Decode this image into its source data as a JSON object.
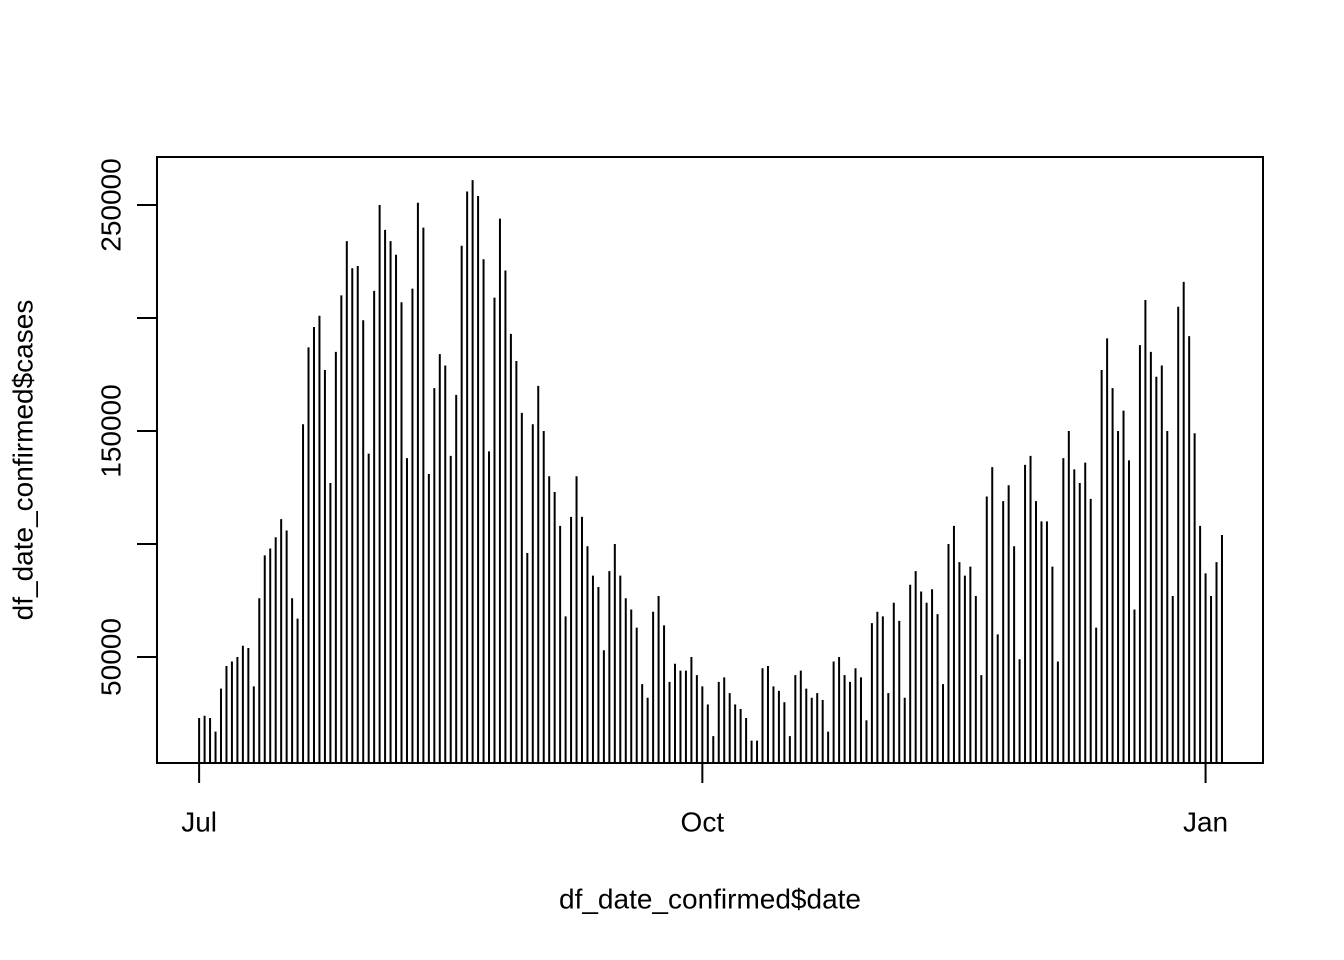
{
  "chart_data": {
    "type": "histogram-lines",
    "xlabel": "df_date_confirmed$date",
    "ylabel": "df_date_confirmed$cases",
    "x": [
      0,
      1,
      2,
      3,
      4,
      5,
      6,
      7,
      8,
      9,
      10,
      11,
      12,
      13,
      14,
      15,
      16,
      17,
      18,
      19,
      20,
      21,
      22,
      23,
      24,
      25,
      26,
      27,
      28,
      29,
      30,
      31,
      32,
      33,
      34,
      35,
      36,
      37,
      38,
      39,
      40,
      41,
      42,
      43,
      44,
      45,
      46,
      47,
      48,
      49,
      50,
      51,
      52,
      53,
      54,
      55,
      56,
      57,
      58,
      59,
      60,
      61,
      62,
      63,
      64,
      65,
      66,
      67,
      68,
      69,
      70,
      71,
      72,
      73,
      74,
      75,
      76,
      77,
      78,
      79,
      80,
      81,
      82,
      83,
      84,
      85,
      86,
      87,
      88,
      89,
      90,
      91,
      92,
      93,
      94,
      95,
      96,
      97,
      98,
      99,
      100,
      101,
      102,
      103,
      104,
      105,
      106,
      107,
      108,
      109,
      110,
      111,
      112,
      113,
      114,
      115,
      116,
      117,
      118,
      119,
      120,
      121,
      122,
      123,
      124,
      125,
      126,
      127,
      128,
      129,
      130,
      131,
      132,
      133,
      134,
      135,
      136,
      137,
      138,
      139,
      140,
      141,
      142,
      143,
      144,
      145,
      146,
      147,
      148,
      149,
      150,
      151,
      152,
      153,
      154,
      155,
      156,
      157,
      158,
      159,
      160,
      161,
      162,
      163,
      164,
      165,
      166,
      167,
      168,
      169,
      170,
      171,
      172,
      173,
      174,
      175,
      176,
      177,
      178,
      179,
      180,
      181,
      182,
      183,
      184,
      185,
      186,
      187
    ],
    "values": [
      23000,
      24000,
      23000,
      17000,
      36000,
      46000,
      48000,
      50000,
      55000,
      54000,
      37000,
      76000,
      95000,
      98000,
      103000,
      111000,
      106000,
      76000,
      67000,
      153000,
      187000,
      196000,
      201000,
      177000,
      127000,
      185000,
      210000,
      234000,
      222000,
      223000,
      199000,
      140000,
      212000,
      250000,
      239000,
      234000,
      228000,
      207000,
      138000,
      213000,
      251000,
      240000,
      131000,
      169000,
      184000,
      179000,
      139000,
      166000,
      232000,
      256000,
      261000,
      254000,
      226000,
      141000,
      209000,
      244000,
      221000,
      193000,
      181000,
      158000,
      96000,
      153000,
      170000,
      150000,
      130000,
      123000,
      108000,
      68000,
      112000,
      130000,
      112000,
      99000,
      86000,
      81000,
      53000,
      88000,
      100000,
      86000,
      76000,
      71000,
      63000,
      38000,
      32000,
      70000,
      77000,
      64000,
      39000,
      47000,
      44000,
      44000,
      50000,
      42000,
      37000,
      29000,
      15000,
      39000,
      41000,
      34000,
      29000,
      27000,
      23000,
      13000,
      13000,
      45000,
      46000,
      37000,
      35000,
      30000,
      15000,
      42000,
      44000,
      36000,
      32000,
      34000,
      31000,
      17000,
      48000,
      50000,
      42000,
      39000,
      45000,
      41000,
      22000,
      65000,
      70000,
      68000,
      34000,
      74000,
      66000,
      32000,
      82000,
      88000,
      79000,
      74000,
      80000,
      69000,
      38000,
      100000,
      108000,
      92000,
      86000,
      90000,
      77000,
      42000,
      121000,
      134000,
      60000,
      119000,
      126000,
      99000,
      49000,
      135000,
      139000,
      119000,
      110000,
      110000,
      90000,
      48000,
      138000,
      150000,
      133000,
      127000,
      136000,
      120000,
      63000,
      177000,
      191000,
      169000,
      150000,
      159000,
      137000,
      71000,
      188000,
      208000,
      185000,
      174000,
      179000,
      150000,
      77000,
      205000,
      216000,
      192000,
      149000,
      108000,
      87000,
      77000,
      92000,
      104000
    ],
    "color": "#000000",
    "xlim": [
      -7.7,
      194.5
    ],
    "xticks": [
      {
        "value": 0,
        "label": "Jul"
      },
      {
        "value": 92,
        "label": "Oct"
      },
      {
        "value": 184,
        "label": "Jan"
      }
    ],
    "ylim": [
      3100,
      271250
    ],
    "yticks": [
      50000,
      {
        "value": 100000,
        "label": null
      },
      150000,
      {
        "value": 200000,
        "label": null
      },
      250000
    ]
  }
}
